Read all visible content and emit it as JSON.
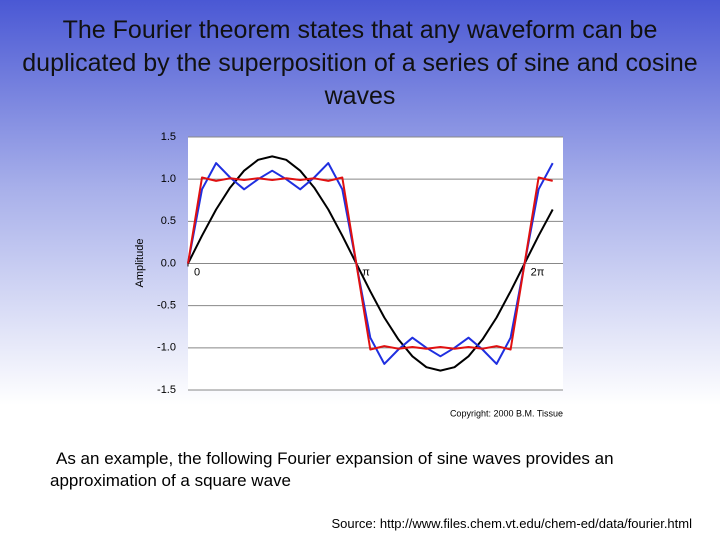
{
  "title": "The Fourier theorem states that any waveform can be duplicated by the superposition of a series of sine and cosine waves",
  "body": "As an example, the following Fourier expansion of sine waves provides an approximation of a square wave",
  "source": "Source: http://www.files.chem.vt.edu/chem-ed/data/fourier.html",
  "chart_data": {
    "type": "line",
    "ylabel": "Amplitude",
    "annotation": "Copyright: 2000 B.M. Tissue",
    "x": [
      0,
      0.262,
      0.524,
      0.785,
      1.047,
      1.309,
      1.571,
      1.833,
      2.094,
      2.356,
      2.618,
      2.88,
      3.142,
      3.403,
      3.665,
      3.927,
      4.189,
      4.451,
      4.712,
      4.974,
      5.236,
      5.498,
      5.76,
      6.021,
      6.283,
      6.545,
      6.807
    ],
    "series": [
      {
        "color": "#000000",
        "values": [
          0,
          0.33,
          0.64,
          0.9,
          1.1,
          1.23,
          1.27,
          1.23,
          1.1,
          0.9,
          0.64,
          0.33,
          0,
          -0.33,
          -0.64,
          -0.9,
          -1.1,
          -1.23,
          -1.27,
          -1.23,
          -1.1,
          -0.9,
          -0.64,
          -0.33,
          0,
          0.33,
          0.64
        ]
      },
      {
        "color": "#1f2fe0",
        "values": [
          0,
          0.88,
          1.19,
          1.02,
          0.88,
          1.0,
          1.1,
          1.0,
          0.88,
          1.02,
          1.19,
          0.88,
          0,
          -0.88,
          -1.19,
          -1.02,
          -0.88,
          -1.0,
          -1.1,
          -1.0,
          -0.88,
          -1.02,
          -1.19,
          -0.88,
          0,
          0.88,
          1.19
        ]
      },
      {
        "color": "#e01010",
        "values": [
          0,
          1.02,
          0.98,
          1.01,
          0.99,
          1.01,
          0.99,
          1.01,
          0.99,
          1.01,
          0.98,
          1.02,
          0,
          -1.02,
          -0.98,
          -1.01,
          -0.99,
          -1.01,
          -0.99,
          -1.01,
          -0.99,
          -1.01,
          -0.98,
          -1.02,
          0,
          1.02,
          0.98
        ]
      }
    ],
    "xlim": [
      0,
      7.0
    ],
    "xticks": [
      {
        "value": 0,
        "label": "0"
      },
      {
        "value": 3.1416,
        "label": "π"
      },
      {
        "value": 6.2832,
        "label": "2π"
      }
    ],
    "ylim": [
      -1.5,
      1.5
    ],
    "yticks": [
      -1.5,
      {
        "value": -1,
        "label": "-1.0"
      },
      -0.5,
      {
        "value": 0,
        "label": "0.0"
      },
      0.5,
      {
        "value": 1,
        "label": "1.0"
      },
      1.5
    ],
    "grid": true
  }
}
